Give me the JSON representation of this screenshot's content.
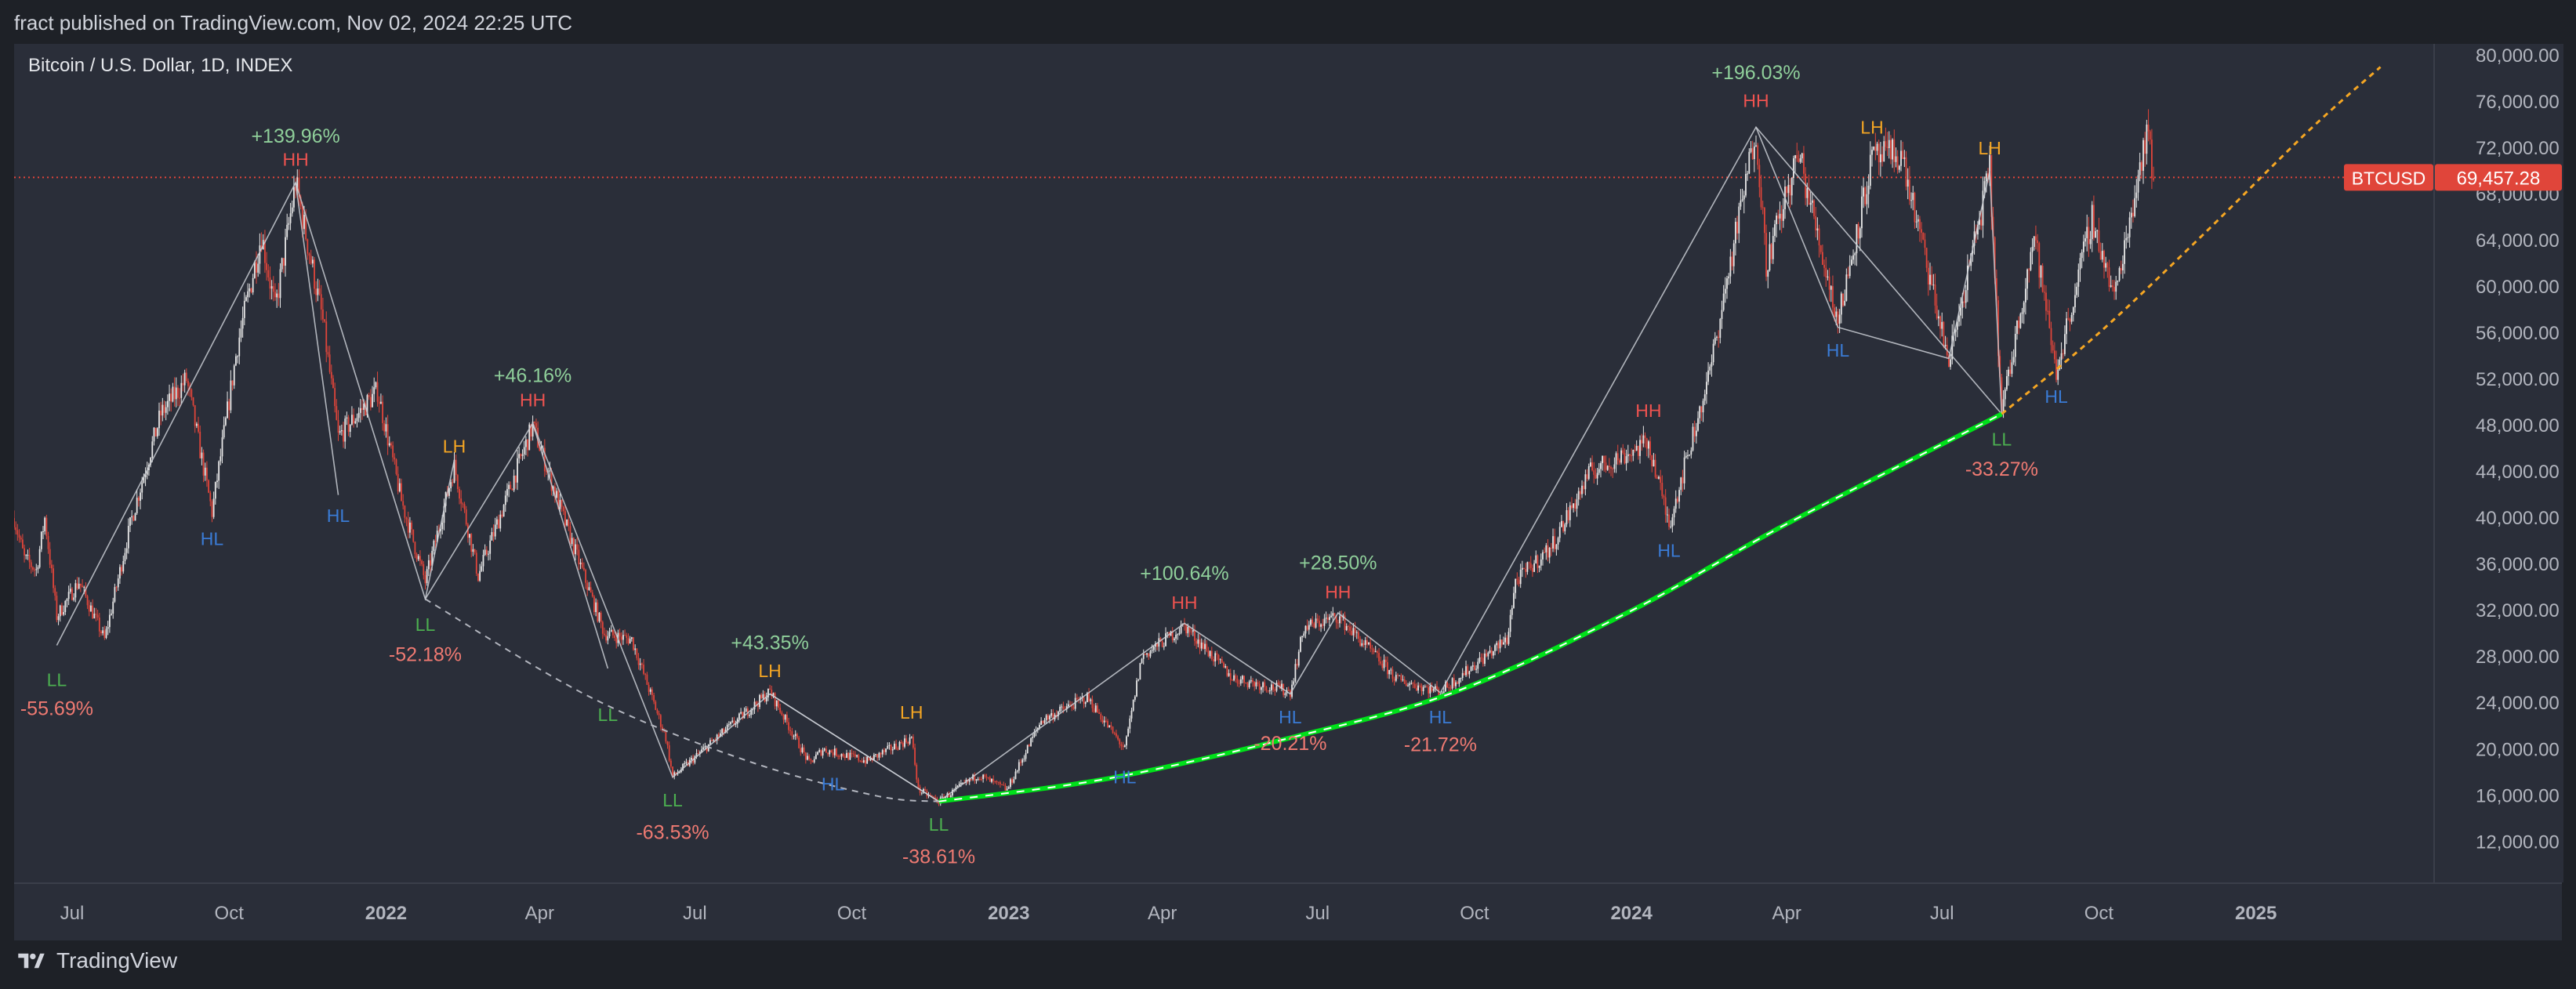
{
  "header": {
    "published": "fract published on TradingView.com, Nov 02, 2024 22:25 UTC"
  },
  "symbol_title": "Bitcoin / U.S. Dollar, 1D, INDEX",
  "brand": "TradingView",
  "price_label": {
    "symbol": "BTCUSD",
    "value": "69,457.28",
    "color": "#e0453a"
  },
  "colors": {
    "background": "#2a2e39",
    "support_curve": "#00e11a",
    "projection": "#f5a623",
    "up_candle": "#e8e8e8",
    "down_candle": "#e0453a",
    "HH": "#ef5350",
    "LH": "#f5a623",
    "HL": "#3a7bd5",
    "LL": "#4caf50",
    "gain": "#8fcf9a",
    "loss": "#ef7a72"
  },
  "chart_data": {
    "type": "line",
    "title": "Bitcoin / U.S. Dollar, 1D, INDEX",
    "y_ticks": [
      12000,
      16000,
      20000,
      24000,
      28000,
      32000,
      36000,
      40000,
      44000,
      48000,
      52000,
      56000,
      60000,
      64000,
      68000,
      72000,
      76000,
      80000
    ],
    "y_tick_labels": [
      "12,000.00",
      "16,000.00",
      "20,000.00",
      "24,000.00",
      "28,000.00",
      "32,000.00",
      "36,000.00",
      "40,000.00",
      "44,000.00",
      "48,000.00",
      "52,000.00",
      "56,000.00",
      "60,000.00",
      "64,000.00",
      "68,000.00",
      "72,000.00",
      "76,000.00",
      "80,000.00"
    ],
    "ylim": [
      8500,
      81000
    ],
    "xlim": [
      "2021-05-28",
      "2025-04-15"
    ],
    "x_ticks": [
      {
        "date": "2021-07-01",
        "label": "Jul",
        "bold": false
      },
      {
        "date": "2021-10-01",
        "label": "Oct",
        "bold": false
      },
      {
        "date": "2022-01-01",
        "label": "2022",
        "bold": true
      },
      {
        "date": "2022-04-01",
        "label": "Apr",
        "bold": false
      },
      {
        "date": "2022-07-01",
        "label": "Jul",
        "bold": false
      },
      {
        "date": "2022-10-01",
        "label": "Oct",
        "bold": false
      },
      {
        "date": "2023-01-01",
        "label": "2023",
        "bold": true
      },
      {
        "date": "2023-04-01",
        "label": "Apr",
        "bold": false
      },
      {
        "date": "2023-07-01",
        "label": "Jul",
        "bold": false
      },
      {
        "date": "2023-10-01",
        "label": "Oct",
        "bold": false
      },
      {
        "date": "2024-01-01",
        "label": "2024",
        "bold": true
      },
      {
        "date": "2024-04-01",
        "label": "Apr",
        "bold": false
      },
      {
        "date": "2024-07-01",
        "label": "Jul",
        "bold": false
      },
      {
        "date": "2024-10-01",
        "label": "Oct",
        "bold": false
      },
      {
        "date": "2025-01-01",
        "label": "2025",
        "bold": true
      }
    ],
    "price_path": [
      [
        "2021-05-28",
        40000
      ],
      [
        "2021-06-03",
        36500
      ],
      [
        "2021-06-10",
        35500
      ],
      [
        "2021-06-15",
        40000
      ],
      [
        "2021-06-22",
        31500
      ],
      [
        "2021-07-05",
        34500
      ],
      [
        "2021-07-20",
        29500
      ],
      [
        "2021-08-05",
        40000
      ],
      [
        "2021-08-22",
        49000
      ],
      [
        "2021-09-06",
        52000
      ],
      [
        "2021-09-21",
        40500
      ],
      [
        "2021-10-06",
        55000
      ],
      [
        "2021-10-20",
        64500
      ],
      [
        "2021-10-28",
        58000
      ],
      [
        "2021-11-09",
        69000
      ],
      [
        "2021-11-25",
        57000
      ],
      [
        "2021-12-04",
        47000
      ],
      [
        "2021-12-27",
        51000
      ],
      [
        "2022-01-10",
        41500
      ],
      [
        "2022-01-24",
        34500
      ],
      [
        "2022-02-10",
        44500
      ],
      [
        "2022-02-24",
        35000
      ],
      [
        "2022-03-28",
        48000
      ],
      [
        "2022-04-15",
        40000
      ],
      [
        "2022-05-09",
        30000
      ],
      [
        "2022-05-25",
        29500
      ],
      [
        "2022-06-14",
        21000
      ],
      [
        "2022-06-18",
        17600
      ],
      [
        "2022-07-10",
        20500
      ],
      [
        "2022-08-14",
        25000
      ],
      [
        "2022-09-06",
        18800
      ],
      [
        "2022-09-14",
        20000
      ],
      [
        "2022-10-10",
        19000
      ],
      [
        "2022-11-05",
        21000
      ],
      [
        "2022-11-09",
        16500
      ],
      [
        "2022-11-21",
        15500
      ],
      [
        "2022-12-14",
        17800
      ],
      [
        "2022-12-31",
        16500
      ],
      [
        "2023-01-20",
        22500
      ],
      [
        "2023-02-16",
        24500
      ],
      [
        "2023-03-10",
        20000
      ],
      [
        "2023-03-20",
        28000
      ],
      [
        "2023-04-14",
        30700
      ],
      [
        "2023-05-12",
        26200
      ],
      [
        "2023-06-15",
        25000
      ],
      [
        "2023-06-23",
        30500
      ],
      [
        "2023-07-13",
        31500
      ],
      [
        "2023-08-17",
        26000
      ],
      [
        "2023-09-11",
        25000
      ],
      [
        "2023-10-20",
        29500
      ],
      [
        "2023-10-25",
        34500
      ],
      [
        "2023-11-15",
        37500
      ],
      [
        "2023-12-08",
        44000
      ],
      [
        "2024-01-11",
        46500
      ],
      [
        "2024-01-23",
        39500
      ],
      [
        "2024-02-15",
        52000
      ],
      [
        "2024-03-14",
        73700
      ],
      [
        "2024-03-20",
        62000
      ],
      [
        "2024-04-08",
        71500
      ],
      [
        "2024-05-01",
        57000
      ],
      [
        "2024-05-21",
        71000
      ],
      [
        "2024-06-07",
        71500
      ],
      [
        "2024-07-05",
        53500
      ],
      [
        "2024-07-29",
        70000
      ],
      [
        "2024-08-05",
        49000
      ],
      [
        "2024-08-24",
        64500
      ],
      [
        "2024-09-06",
        52600
      ],
      [
        "2024-09-27",
        66000
      ],
      [
        "2024-10-10",
        59000
      ],
      [
        "2024-10-29",
        73500
      ],
      [
        "2024-11-02",
        69457
      ]
    ],
    "structure_lines": [
      [
        [
          "2021-06-22",
          29000
        ],
        [
          "2021-11-09",
          69000
        ],
        [
          "2022-01-24",
          33000
        ],
        [
          "2022-03-28",
          48200
        ],
        [
          "2022-06-18",
          17600
        ],
        [
          "2022-08-14",
          24800
        ],
        [
          "2022-11-21",
          15500
        ],
        [
          "2023-04-14",
          30900
        ],
        [
          "2023-06-15",
          24800
        ],
        [
          "2023-07-13",
          31800
        ],
        [
          "2023-09-11",
          24900
        ],
        [
          "2024-03-14",
          73800
        ],
        [
          "2024-08-05",
          49000
        ]
      ],
      [
        [
          "2021-11-09",
          69000
        ],
        [
          "2021-12-04",
          42000
        ]
      ],
      [
        [
          "2022-01-24",
          33000
        ],
        [
          "2022-02-10",
          45000
        ]
      ],
      [
        [
          "2022-03-28",
          48200
        ],
        [
          "2022-05-11",
          27000
        ]
      ],
      [
        [
          "2022-08-14",
          24800
        ],
        [
          "2022-11-21",
          15500
        ]
      ],
      [
        [
          "2024-03-14",
          73800
        ],
        [
          "2024-05-01",
          56500
        ],
        [
          "2024-07-05",
          53800
        ],
        [
          "2024-07-29",
          70000
        ],
        [
          "2024-08-05",
          49000
        ]
      ]
    ],
    "dashed_bottom_arc": [
      [
        "2022-01-24",
        33000
      ],
      [
        "2022-05-01",
        24500
      ],
      [
        "2022-08-01",
        19000
      ],
      [
        "2022-10-15",
        16000
      ],
      [
        "2022-11-21",
        15500
      ]
    ],
    "support_curve": [
      [
        "2022-11-21",
        15500
      ],
      [
        "2023-03-01",
        17500
      ],
      [
        "2023-06-15",
        21000
      ],
      [
        "2023-09-20",
        25000
      ],
      [
        "2024-01-01",
        32000
      ],
      [
        "2024-04-01",
        39500
      ],
      [
        "2024-08-05",
        49000
      ]
    ],
    "projection_curve": [
      [
        "2024-08-05",
        49000
      ],
      [
        "2024-10-01",
        56000
      ],
      [
        "2024-12-01",
        64500
      ],
      [
        "2025-02-01",
        73500
      ],
      [
        "2025-03-15",
        79000
      ]
    ],
    "current_price": 69457.28,
    "labels": [
      {
        "text": "LL",
        "kind": "LL",
        "date": "2021-06-22",
        "price": 26000
      },
      {
        "text": "-55.69%",
        "kind": "loss",
        "date": "2021-06-22",
        "price": 23500
      },
      {
        "text": "+139.96%",
        "kind": "gain",
        "date": "2021-11-09",
        "price": 73000
      },
      {
        "text": "HH",
        "kind": "HH",
        "date": "2021-11-09",
        "price": 71000
      },
      {
        "text": "HL",
        "kind": "HL",
        "date": "2021-09-21",
        "price": 38200
      },
      {
        "text": "HL",
        "kind": "HL",
        "date": "2021-12-04",
        "price": 40200
      },
      {
        "text": "LL",
        "kind": "LL",
        "date": "2022-01-24",
        "price": 30800
      },
      {
        "text": "-52.18%",
        "kind": "loss",
        "date": "2022-01-24",
        "price": 28200
      },
      {
        "text": "LH",
        "kind": "LH",
        "date": "2022-02-10",
        "price": 46200
      },
      {
        "text": "+46.16%",
        "kind": "gain",
        "date": "2022-03-28",
        "price": 52300
      },
      {
        "text": "HH",
        "kind": "HH",
        "date": "2022-03-28",
        "price": 50200
      },
      {
        "text": "LL",
        "kind": "LL",
        "date": "2022-05-11",
        "price": 23000
      },
      {
        "text": "LL",
        "kind": "LL",
        "date": "2022-06-18",
        "price": 15600
      },
      {
        "text": "-63.53%",
        "kind": "loss",
        "date": "2022-06-18",
        "price": 12800
      },
      {
        "text": "+43.35%",
        "kind": "gain",
        "date": "2022-08-14",
        "price": 29200
      },
      {
        "text": "LH",
        "kind": "LH",
        "date": "2022-08-14",
        "price": 26800
      },
      {
        "text": "HL",
        "kind": "HL",
        "date": "2022-09-20",
        "price": 17000
      },
      {
        "text": "LH",
        "kind": "LH",
        "date": "2022-11-05",
        "price": 23200
      },
      {
        "text": "LL",
        "kind": "LL",
        "date": "2022-11-21",
        "price": 13500
      },
      {
        "text": "-38.61%",
        "kind": "loss",
        "date": "2022-11-21",
        "price": 10700
      },
      {
        "text": "HL",
        "kind": "HL",
        "date": "2023-03-10",
        "price": 17600
      },
      {
        "text": "+100.64%",
        "kind": "gain",
        "date": "2023-04-14",
        "price": 35200
      },
      {
        "text": "HH",
        "kind": "HH",
        "date": "2023-04-14",
        "price": 32700
      },
      {
        "text": "HL",
        "kind": "HL",
        "date": "2023-06-15",
        "price": 22800
      },
      {
        "text": "-20.21%",
        "kind": "loss",
        "date": "2023-06-15",
        "price": 20500
      },
      {
        "text": "+28.50%",
        "kind": "gain",
        "date": "2023-07-13",
        "price": 36100
      },
      {
        "text": "HH",
        "kind": "HH",
        "date": "2023-07-13",
        "price": 33600
      },
      {
        "text": "HL",
        "kind": "HL",
        "date": "2023-09-11",
        "price": 22800
      },
      {
        "text": "-21.72%",
        "kind": "loss",
        "date": "2023-09-11",
        "price": 20400
      },
      {
        "text": "HH",
        "kind": "HH",
        "date": "2024-01-11",
        "price": 49300
      },
      {
        "text": "HL",
        "kind": "HL",
        "date": "2024-01-23",
        "price": 37200
      },
      {
        "text": "+196.03%",
        "kind": "gain",
        "date": "2024-03-14",
        "price": 78500
      },
      {
        "text": "HH",
        "kind": "HH",
        "date": "2024-03-14",
        "price": 76100
      },
      {
        "text": "HL",
        "kind": "HL",
        "date": "2024-05-01",
        "price": 54500
      },
      {
        "text": "LH",
        "kind": "LH",
        "date": "2024-05-21",
        "price": 73800
      },
      {
        "text": "LH",
        "kind": "LH",
        "date": "2024-07-29",
        "price": 72000
      },
      {
        "text": "LL",
        "kind": "LL",
        "date": "2024-08-05",
        "price": 46800
      },
      {
        "text": "-33.27%",
        "kind": "loss",
        "date": "2024-08-05",
        "price": 44200
      },
      {
        "text": "HL",
        "kind": "HL",
        "date": "2024-09-06",
        "price": 50500
      }
    ]
  }
}
